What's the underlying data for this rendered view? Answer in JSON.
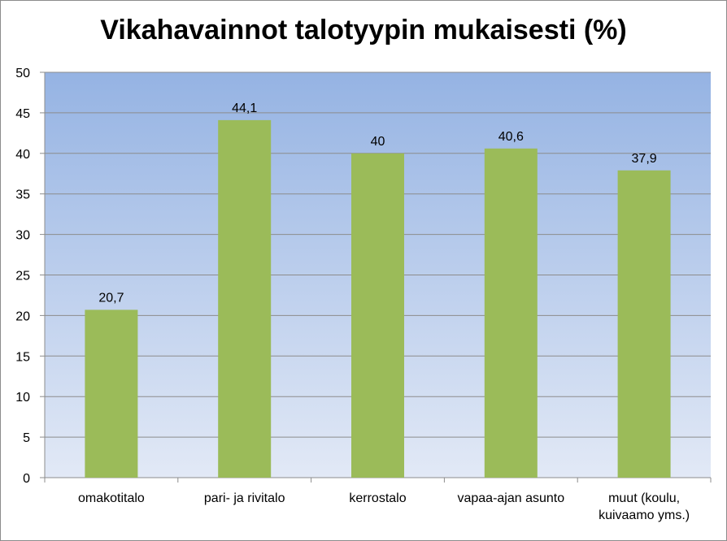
{
  "chart_data": {
    "type": "bar",
    "title": "Vikahavainnot talotyypin mukaisesti (%)",
    "categories": [
      [
        "omakotitalo"
      ],
      [
        "pari- ja rivitalo"
      ],
      [
        "kerrostalo"
      ],
      [
        "vapaa-ajan asunto"
      ],
      [
        "muut (koulu,",
        "kuivaamo yms.)"
      ]
    ],
    "values": [
      20.7,
      44.1,
      40,
      40.6,
      37.9
    ],
    "data_labels": [
      "20,7",
      "44,1",
      "40",
      "40,6",
      "37,9"
    ],
    "ylim": [
      0,
      50
    ],
    "yticks": [
      0,
      5,
      10,
      15,
      20,
      25,
      30,
      35,
      40,
      45,
      50
    ],
    "xlabel": "",
    "ylabel": "",
    "grid": true,
    "legend": "none",
    "colors": {
      "bar": "#9bbb59",
      "plot_top": "#95b3e3",
      "plot_bottom": "#e2e9f6",
      "gridline": "#8c8c8c",
      "axis": "#8c8c8c"
    }
  }
}
